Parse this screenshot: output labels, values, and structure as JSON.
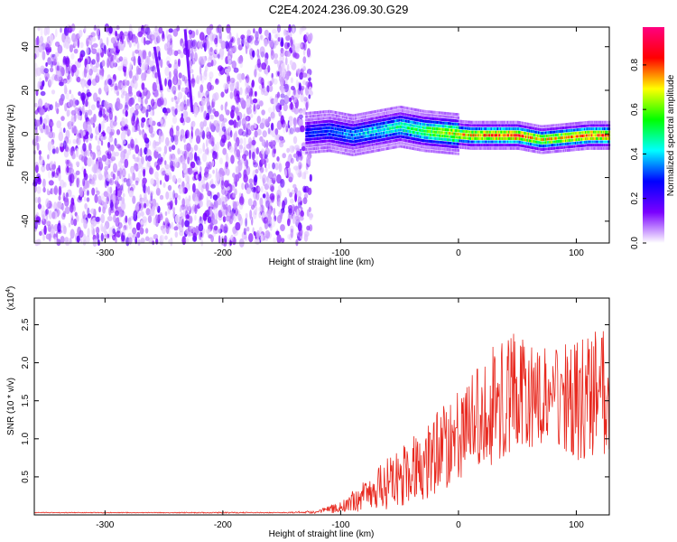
{
  "page_title": "C2E4.2024.236.09.30.G29",
  "chart_data": [
    {
      "type": "heatmap",
      "title": "C2E4.2024.236.09.30.G29",
      "xlabel": "Height of straight line (km)",
      "ylabel": "Frequency (Hz)",
      "xlim": [
        -360,
        128
      ],
      "ylim": [
        -50,
        49
      ],
      "x_ticks": [
        -300,
        -200,
        -100,
        0,
        100
      ],
      "y_ticks": [
        -40,
        -20,
        0,
        20,
        40
      ],
      "colorbar": {
        "label": "Normalized spectral amplitude",
        "range": [
          0.0,
          0.97
        ],
        "ticks": [
          0.0,
          0.2,
          0.4,
          0.6,
          0.8
        ],
        "tick_labels": [
          "0.0",
          "0.2",
          "0.4",
          "0.6",
          "0.8"
        ],
        "colors": [
          "#ffffff",
          "#7a00ff",
          "#0000ff",
          "#00ffff",
          "#00ff00",
          "#ffff00",
          "#ff0000",
          "#ff0080"
        ]
      },
      "noise_region_x": [
        -360,
        -125
      ],
      "signal_band": [
        {
          "x": -130,
          "freq": 1,
          "amp": 0.3
        },
        {
          "x": -110,
          "freq": 2,
          "amp": 0.35
        },
        {
          "x": -90,
          "freq": 0,
          "amp": 0.4
        },
        {
          "x": -70,
          "freq": 2,
          "amp": 0.45
        },
        {
          "x": -50,
          "freq": 4,
          "amp": 0.5
        },
        {
          "x": -30,
          "freq": 2,
          "amp": 0.6
        },
        {
          "x": -10,
          "freq": 1,
          "amp": 0.7
        },
        {
          "x": 10,
          "freq": 0,
          "amp": 0.8
        },
        {
          "x": 30,
          "freq": 0,
          "amp": 0.85
        },
        {
          "x": 50,
          "freq": 0,
          "amp": 0.9
        },
        {
          "x": 70,
          "freq": -2,
          "amp": 0.75
        },
        {
          "x": 90,
          "freq": -1,
          "amp": 0.8
        },
        {
          "x": 110,
          "freq": 0,
          "amp": 0.85
        },
        {
          "x": 128,
          "freq": 0,
          "amp": 0.85
        }
      ]
    },
    {
      "type": "line",
      "xlabel": "Height of straight line (km)",
      "ylabel": "SNR (10 * v/v)",
      "y_multiplier": "(x10",
      "y_multiplier_exp": "4",
      "y_multiplier_close": ")",
      "xlim": [
        -360,
        128
      ],
      "ylim": [
        0,
        2.85
      ],
      "x_ticks": [
        -300,
        -200,
        -100,
        0,
        100
      ],
      "y_ticks": [
        0.5,
        1.0,
        1.5,
        2.0,
        2.5
      ],
      "y_tick_labels": [
        "0.5",
        "1.0",
        "1.5",
        "2.0",
        "2.5"
      ],
      "series": [
        {
          "name": "SNR",
          "color": "#e8281e",
          "x": [
            -360,
            -300,
            -250,
            -200,
            -150,
            -120,
            -100,
            -80,
            -60,
            -40,
            -20,
            0,
            20,
            40,
            60,
            80,
            100,
            128
          ],
          "y": [
            0.03,
            0.03,
            0.03,
            0.03,
            0.03,
            0.04,
            0.1,
            0.25,
            0.4,
            0.6,
            0.8,
            1.05,
            1.3,
            1.6,
            1.55,
            1.6,
            1.5,
            1.6
          ],
          "spread": [
            0.005,
            0.005,
            0.005,
            0.008,
            0.005,
            0.02,
            0.08,
            0.2,
            0.35,
            0.45,
            0.55,
            0.6,
            0.7,
            0.9,
            0.7,
            0.6,
            0.8,
            0.9
          ]
        }
      ]
    }
  ]
}
